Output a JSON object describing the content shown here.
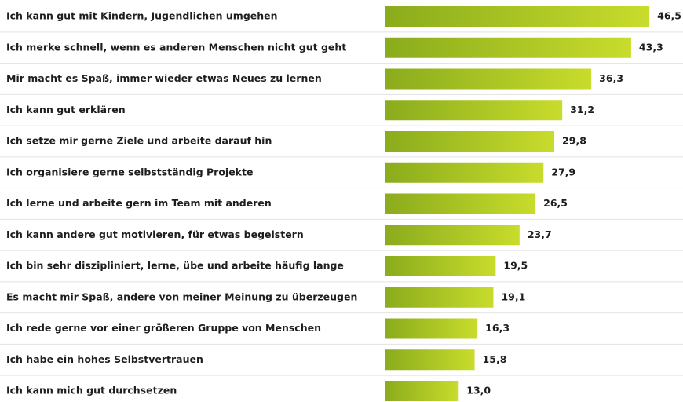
{
  "chart_data": {
    "type": "bar",
    "orientation": "horizontal",
    "categories": [
      "Ich kann gut mit Kindern, Jugendlichen umgehen",
      "Ich merke schnell, wenn es anderen Menschen nicht gut geht",
      "Mir macht es Spaß, immer wieder etwas Neues zu lernen",
      "Ich kann gut erklären",
      "Ich setze mir gerne Ziele und arbeite darauf hin",
      "Ich organisiere gerne selbstständig Projekte",
      "Ich lerne und arbeite gern im Team mit anderen",
      "Ich kann andere gut motivieren, für etwas begeistern",
      "Ich bin sehr diszipliniert, lerne, übe und arbeite häufig lange",
      "Es macht mir Spaß, andere von meiner Meinung zu überzeugen",
      "Ich rede gerne vor einer größeren Gruppe von Menschen",
      "Ich habe ein hohes Selbstvertrauen",
      "Ich kann mich gut durchsetzen"
    ],
    "values": [
      46.5,
      43.3,
      36.3,
      31.2,
      29.8,
      27.9,
      26.5,
      23.7,
      19.5,
      19.1,
      16.3,
      15.8,
      13.0
    ],
    "value_labels": [
      "46,5",
      "43,3",
      "36,3",
      "31,2",
      "29,8",
      "27,9",
      "26,5",
      "23,7",
      "19,5",
      "19,1",
      "16,3",
      "15,8",
      "13,0"
    ],
    "color_start": "#8aab1c",
    "color_end": "#c8dc2c"
  }
}
